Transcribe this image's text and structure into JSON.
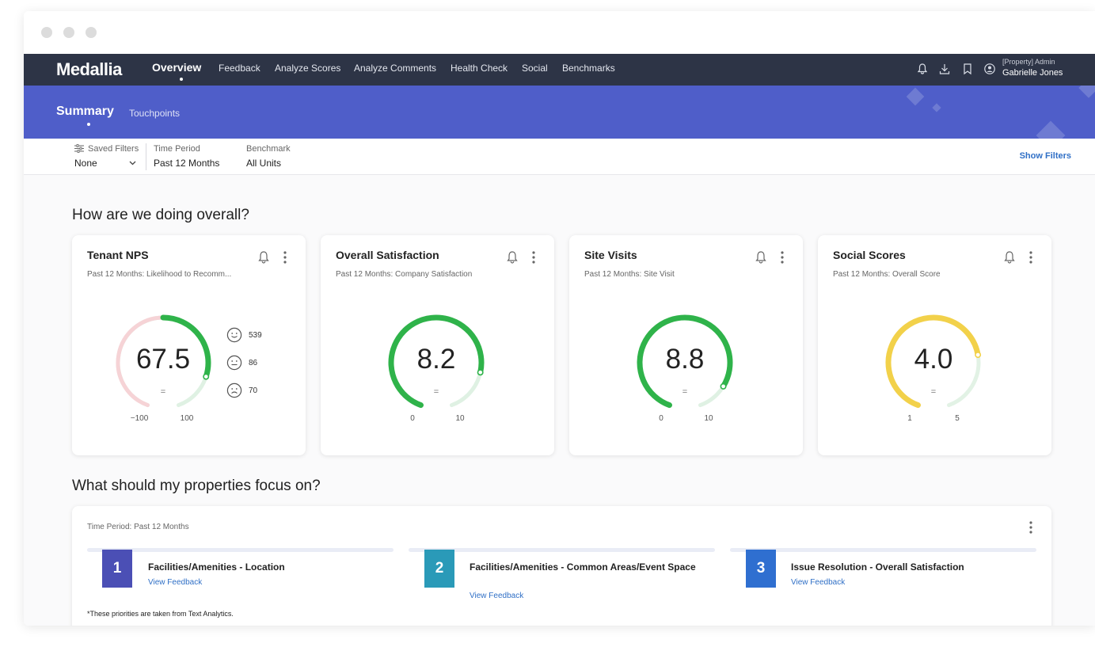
{
  "app": {
    "logo": "Medallia",
    "nav": [
      "Overview",
      "Feedback",
      "Analyze Scores",
      "Analyze Comments",
      "Health Check",
      "Social",
      "Benchmarks"
    ],
    "user_role": "[Property] Admin",
    "user_name": "Gabrielle Jones"
  },
  "subnav": {
    "title": "Summary",
    "tab": "Touchpoints"
  },
  "filters": {
    "saved_label": "Saved Filters",
    "saved_value": "None",
    "period_label": "Time Period",
    "period_value": "Past 12 Months",
    "bench_label": "Benchmark",
    "bench_value": "All Units",
    "show_filters": "Show Filters"
  },
  "section1": "How are we doing overall?",
  "cards": [
    {
      "title": "Tenant NPS",
      "subtitle": "Past 12 Months: Likelihood to Recomm...",
      "value": "67.5",
      "eq": "=",
      "min": "−100",
      "max": "100",
      "fill": 0.8375,
      "color": "#2fb34a"
    },
    {
      "title": "Overall Satisfaction",
      "subtitle": "Past 12 Months: Company Satisfaction",
      "value": "8.2",
      "eq": "=",
      "min": "0",
      "max": "10",
      "fill": 0.82,
      "color": "#2fb34a"
    },
    {
      "title": "Site Visits",
      "subtitle": "Past 12 Months: Site Visit",
      "value": "8.8",
      "eq": "=",
      "min": "0",
      "max": "10",
      "fill": 0.88,
      "color": "#2fb34a"
    },
    {
      "title": "Social Scores",
      "subtitle": "Past 12 Months: Overall Score",
      "value": "4.0",
      "eq": "=",
      "min": "1",
      "max": "5",
      "fill": 0.75,
      "color": "#f2d14a"
    }
  ],
  "nps_faces": [
    {
      "icon": "smile-icon",
      "count": "539"
    },
    {
      "icon": "neutral-face-icon",
      "count": "86"
    },
    {
      "icon": "frown-icon",
      "count": "70"
    }
  ],
  "section2": "What should my properties focus on?",
  "priorities": {
    "time_period": "Time Period: Past 12 Months",
    "items": [
      {
        "num": "1",
        "title": "Facilities/Amenities - Location",
        "link": "View Feedback",
        "color": "#4b4fb5"
      },
      {
        "num": "2",
        "title": "Facilities/Amenities - Common Areas/Event Space",
        "link": "View Feedback",
        "color": "#2a9ab8"
      },
      {
        "num": "3",
        "title": "Issue Resolution - Overall Satisfaction",
        "link": "View Feedback",
        "color": "#2f6fd0"
      }
    ],
    "note": "*These priorities are taken from Text Analytics."
  }
}
